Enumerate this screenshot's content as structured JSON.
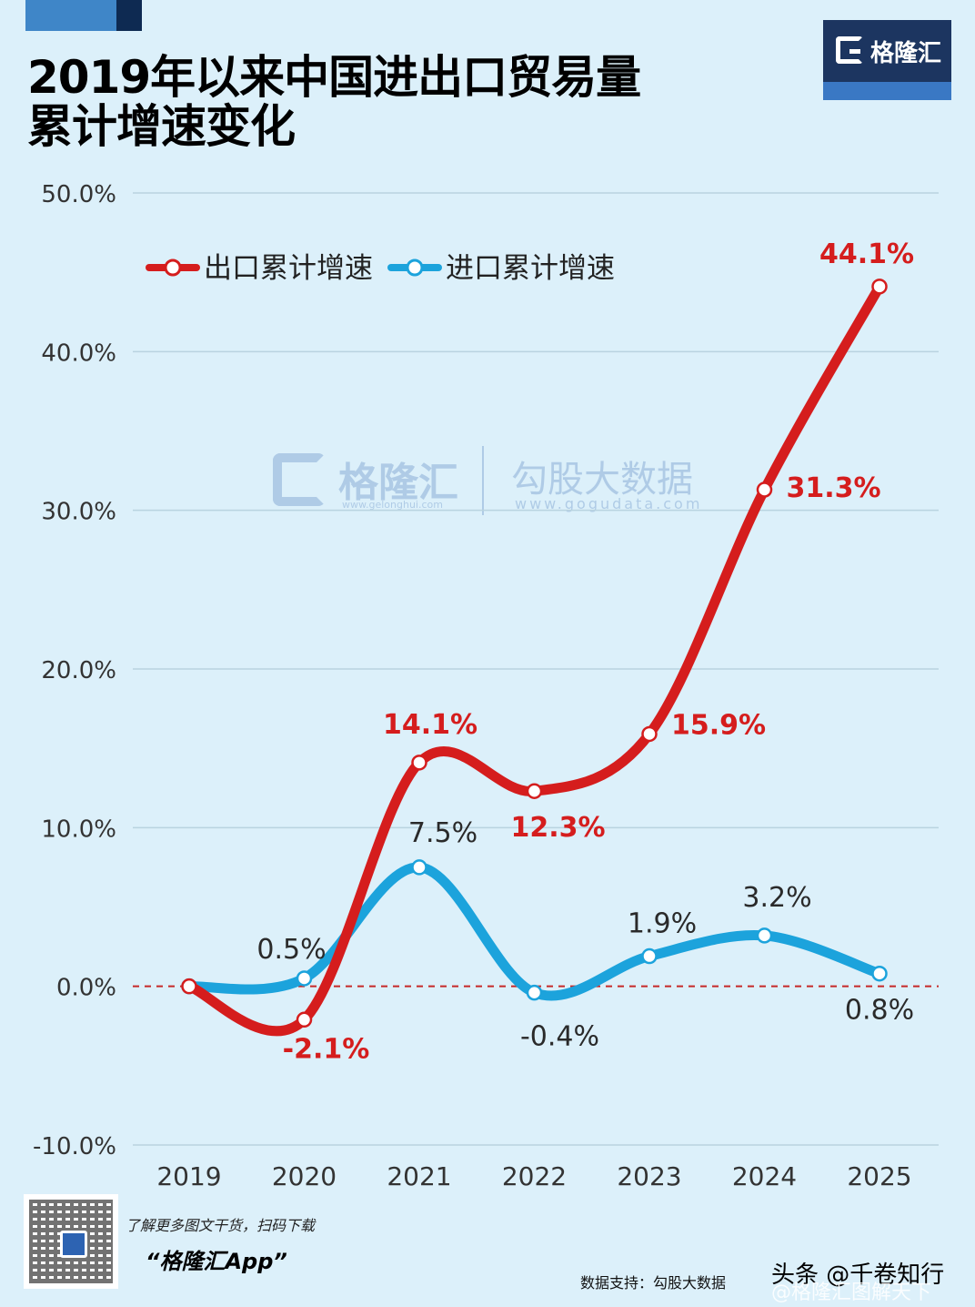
{
  "header": {
    "title_line1": "2019年以来中国进出口贸易量",
    "title_line2": "累计增速变化",
    "logo_text": "格隆汇"
  },
  "watermark": {
    "brand": "格隆汇",
    "brand_url": "www.gelonghui.com",
    "data_brand": "勾股大数据",
    "data_url": "www.gogudata.com"
  },
  "colors": {
    "background": "#dcf0fa",
    "export": "#d51d1d",
    "import": "#1ca3dc",
    "zero_line": "#c62828",
    "grid": "#b9d3e0"
  },
  "chart_data": {
    "type": "line",
    "title": "2019年以来中国进出口贸易量累计增速变化",
    "xlabel": "",
    "ylabel": "",
    "x": [
      "2019",
      "2020",
      "2021",
      "2022",
      "2023",
      "2024",
      "2025"
    ],
    "ylim": [
      -10,
      50
    ],
    "yticks": [
      -10,
      0,
      10,
      20,
      30,
      40,
      50
    ],
    "ytick_labels": [
      "-10.0%",
      "0.0%",
      "10.0%",
      "20.0%",
      "30.0%",
      "40.0%",
      "50.0%"
    ],
    "grid": true,
    "legend_position": "top-left",
    "reference_line": {
      "y": 0,
      "style": "dashed"
    },
    "series": [
      {
        "name": "出口累计增速",
        "color": "#d51d1d",
        "values": [
          0,
          -2.1,
          14.1,
          12.3,
          15.9,
          31.3,
          44.1
        ],
        "labels": [
          "",
          "-2.1%",
          "14.1%",
          "12.3%",
          "15.9%",
          "31.3%",
          "44.1%"
        ]
      },
      {
        "name": "进口累计增速",
        "color": "#1ca3dc",
        "values": [
          0,
          0.5,
          7.5,
          -0.4,
          1.9,
          3.2,
          0.8
        ],
        "labels": [
          "",
          "0.5%",
          "7.5%",
          "-0.4%",
          "1.9%",
          "3.2%",
          "0.8%"
        ]
      }
    ]
  },
  "footer": {
    "promo": "了解更多图文干货，扫码下载",
    "app_name": "“格隆汇App”",
    "source": "数据支持：勾股大数据",
    "handle": "头条 @千卷知行",
    "handle_sub": "@格隆汇图解天下"
  }
}
